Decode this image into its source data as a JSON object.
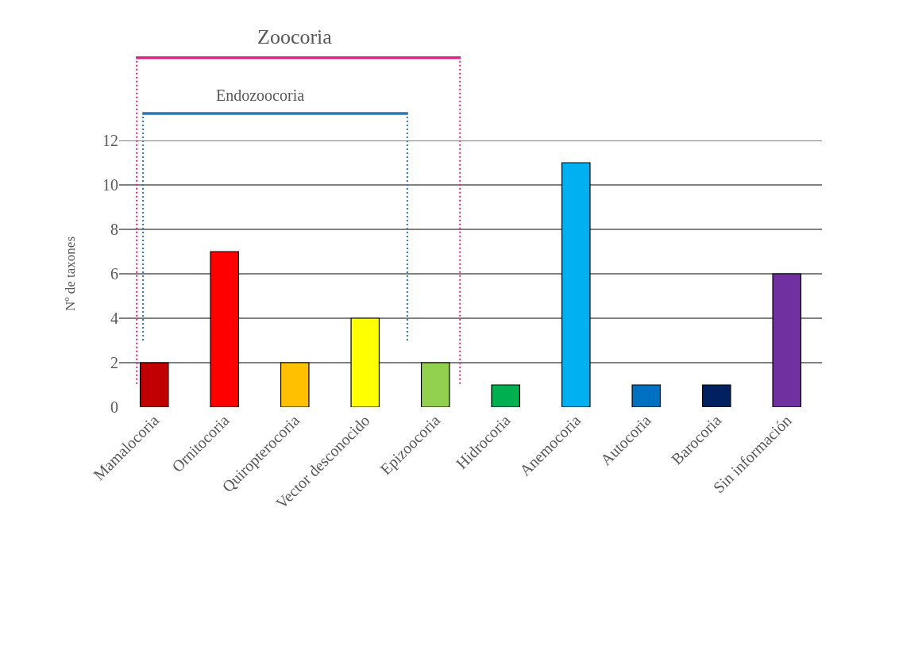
{
  "chart_data": {
    "type": "bar",
    "ylabel": "Nº de taxones",
    "categories": [
      "Mamalocoria",
      "Ornitocoria",
      "Quiropterocoria",
      "Vector desconocido",
      "Epizoocoria",
      "Hidrocoria",
      "Anemocoria",
      "Autocoria",
      "Barocoria",
      "Sin información"
    ],
    "values": [
      2,
      7,
      2,
      4,
      2,
      1,
      11,
      1,
      1,
      6
    ],
    "colors": [
      "#c00000",
      "#ff0000",
      "#ffc000",
      "#ffff00",
      "#92d050",
      "#00b050",
      "#00b0f0",
      "#0070c0",
      "#002060",
      "#7030a0"
    ],
    "ylim": [
      0,
      12
    ],
    "yticks": [
      0,
      2,
      4,
      6,
      8,
      10,
      12
    ],
    "grid": "y",
    "annotations": [
      "Zoocoria",
      "Endozoocoria"
    ]
  }
}
